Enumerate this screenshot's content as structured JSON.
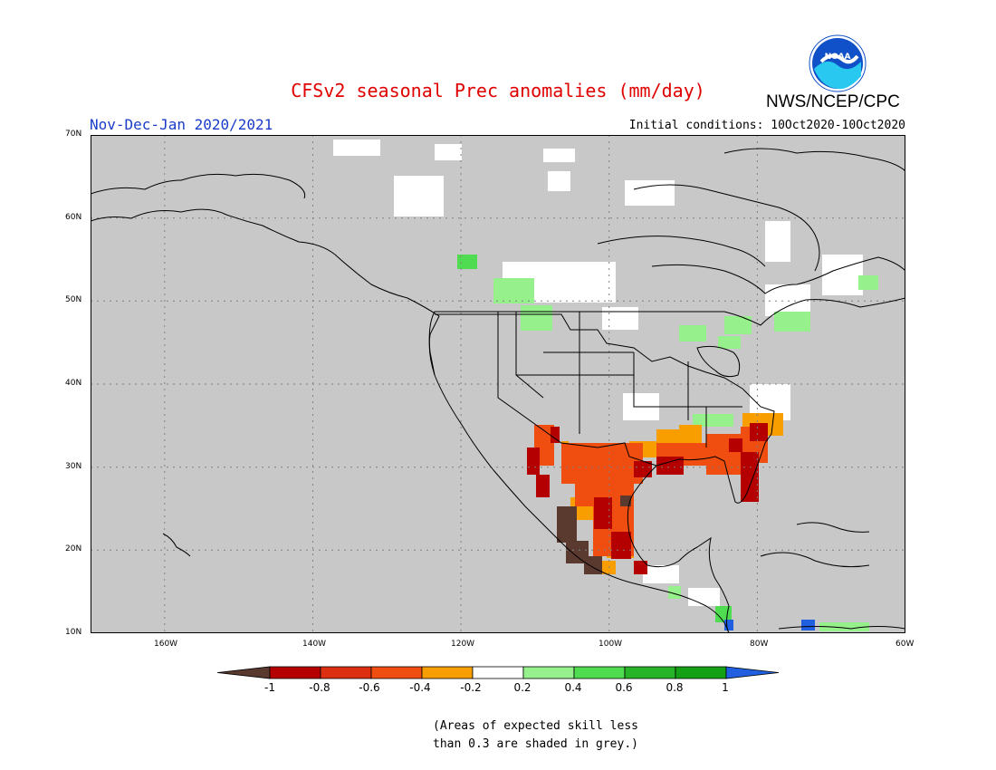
{
  "header": {
    "title": "CFSv2 seasonal Prec anomalies (mm/day)",
    "organization": "NWS/NCEP/CPC",
    "logo_text": "NOAA",
    "period": "Nov-Dec-Jan 2020/2021",
    "initial_conditions": "Initial conditions: 10Oct2020-10Oct2020"
  },
  "map": {
    "lat_labels": [
      "70N",
      "60N",
      "50N",
      "40N",
      "30N",
      "20N",
      "10N"
    ],
    "lon_labels": [
      "160W",
      "140W",
      "120W",
      "100W",
      "80W",
      "60W"
    ],
    "background_color": "#c8c8c8",
    "outline_color": "#000000",
    "grid_style": "dotted"
  },
  "legend": {
    "tick_labels": [
      "-1",
      "-0.8",
      "-0.6",
      "-0.4",
      "-0.2",
      "0.2",
      "0.4",
      "0.6",
      "0.8",
      "1"
    ],
    "colors": [
      "#5a3a2e",
      "#b40000",
      "#dc2e10",
      "#f04e10",
      "#f89e00",
      "#ffffff",
      "#96f08c",
      "#50dc50",
      "#28b428",
      "#14a014",
      "#2060e0"
    ]
  },
  "footnote": {
    "line1": "(Areas of expected skill less",
    "line2": "than 0.3 are shaded in grey.)"
  },
  "colors": {
    "title": "#e00000",
    "period": "#1a3cc8",
    "noaa_blue": "#1050c8",
    "noaa_cyan": "#28c8f0"
  }
}
